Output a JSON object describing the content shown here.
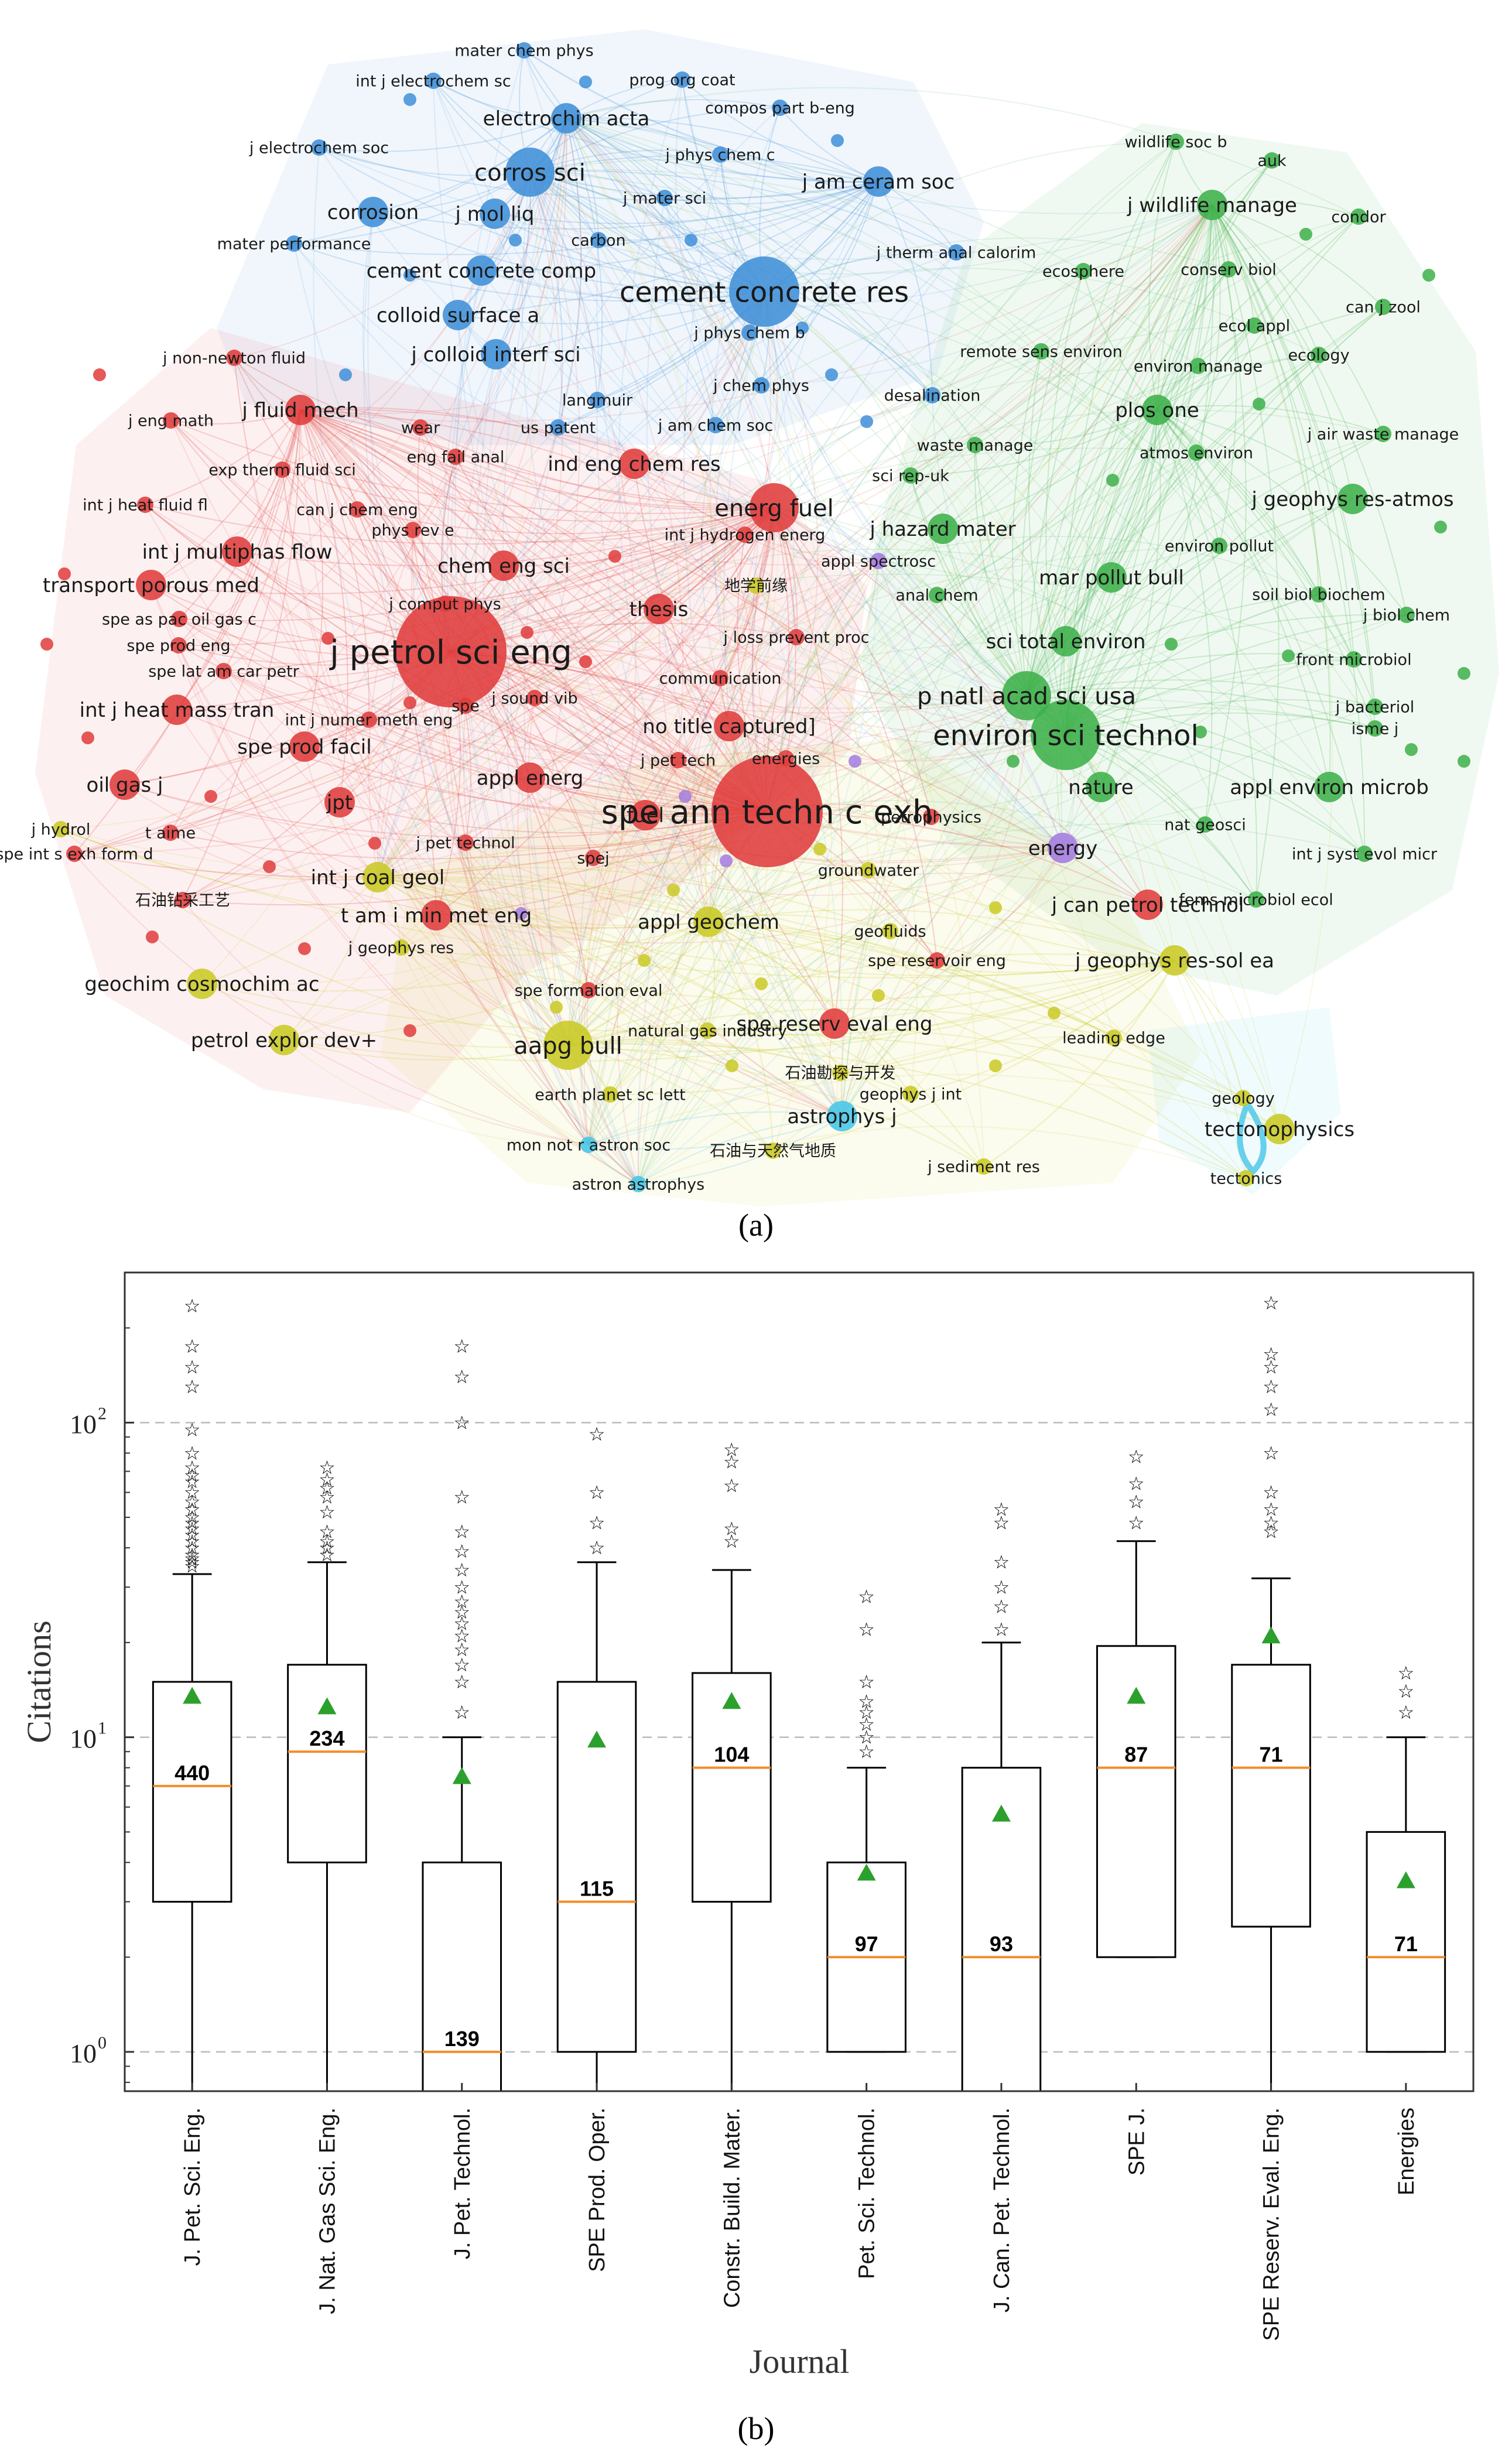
{
  "chart_data": [
    {
      "type": "network",
      "panel_label": "(a)",
      "clusters": [
        {
          "name": "blue",
          "color": "#3f8fd8"
        },
        {
          "name": "red",
          "color": "#e03c3c"
        },
        {
          "name": "green",
          "color": "#3db04a"
        },
        {
          "name": "yellow",
          "color": "#c9c924"
        },
        {
          "name": "purple",
          "color": "#a37be0"
        },
        {
          "name": "cyan",
          "color": "#45c6e8"
        }
      ],
      "nodes": [
        {
          "label": "mater chem phys",
          "cluster": "blue",
          "weight": 1
        },
        {
          "label": "int j electrochem sc",
          "cluster": "blue",
          "weight": 1
        },
        {
          "label": "prog org coat",
          "cluster": "blue",
          "weight": 1
        },
        {
          "label": "compos part b-eng",
          "cluster": "blue",
          "weight": 1
        },
        {
          "label": "electrochim acta",
          "cluster": "blue",
          "weight": 2
        },
        {
          "label": "j electrochem soc",
          "cluster": "blue",
          "weight": 1
        },
        {
          "label": "j phys chem c",
          "cluster": "blue",
          "weight": 1
        },
        {
          "label": "corros sci",
          "cluster": "blue",
          "weight": 3
        },
        {
          "label": "j am ceram soc",
          "cluster": "blue",
          "weight": 2
        },
        {
          "label": "corrosion",
          "cluster": "blue",
          "weight": 2
        },
        {
          "label": "j mol liq",
          "cluster": "blue",
          "weight": 2
        },
        {
          "label": "j mater sci",
          "cluster": "blue",
          "weight": 1
        },
        {
          "label": "mater performance",
          "cluster": "blue",
          "weight": 1
        },
        {
          "label": "carbon",
          "cluster": "blue",
          "weight": 1
        },
        {
          "label": "j therm anal calorim",
          "cluster": "blue",
          "weight": 1
        },
        {
          "label": "cement concrete comp",
          "cluster": "blue",
          "weight": 2
        },
        {
          "label": "cement concrete res",
          "cluster": "blue",
          "weight": 4
        },
        {
          "label": "colloid surface a",
          "cluster": "blue",
          "weight": 2
        },
        {
          "label": "j phys chem b",
          "cluster": "blue",
          "weight": 1
        },
        {
          "label": "j colloid interf sci",
          "cluster": "blue",
          "weight": 2
        },
        {
          "label": "j chem phys",
          "cluster": "blue",
          "weight": 1
        },
        {
          "label": "langmuir",
          "cluster": "blue",
          "weight": 1
        },
        {
          "label": "desalination",
          "cluster": "blue",
          "weight": 1
        },
        {
          "label": "j am chem soc",
          "cluster": "blue",
          "weight": 1
        },
        {
          "label": "us patent",
          "cluster": "blue",
          "weight": 1
        },
        {
          "label": "wildlife soc b",
          "cluster": "green",
          "weight": 1
        },
        {
          "label": "auk",
          "cluster": "green",
          "weight": 1
        },
        {
          "label": "j wildlife manage",
          "cluster": "green",
          "weight": 2
        },
        {
          "label": "condor",
          "cluster": "green",
          "weight": 1
        },
        {
          "label": "ecosphere",
          "cluster": "green",
          "weight": 1
        },
        {
          "label": "conserv biol",
          "cluster": "green",
          "weight": 1
        },
        {
          "label": "can j zool",
          "cluster": "green",
          "weight": 1
        },
        {
          "label": "ecol appl",
          "cluster": "green",
          "weight": 1
        },
        {
          "label": "remote sens environ",
          "cluster": "green",
          "weight": 1
        },
        {
          "label": "environ manage",
          "cluster": "green",
          "weight": 1
        },
        {
          "label": "ecology",
          "cluster": "green",
          "weight": 1
        },
        {
          "label": "plos one",
          "cluster": "green",
          "weight": 2
        },
        {
          "label": "j air waste manage",
          "cluster": "green",
          "weight": 1
        },
        {
          "label": "waste manage",
          "cluster": "green",
          "weight": 1
        },
        {
          "label": "atmos environ",
          "cluster": "green",
          "weight": 1
        },
        {
          "label": "sci rep-uk",
          "cluster": "green",
          "weight": 1
        },
        {
          "label": "j geophys res-atmos",
          "cluster": "green",
          "weight": 2
        },
        {
          "label": "j hazard mater",
          "cluster": "green",
          "weight": 2
        },
        {
          "label": "environ pollut",
          "cluster": "green",
          "weight": 1
        },
        {
          "label": "mar pollut bull",
          "cluster": "green",
          "weight": 2
        },
        {
          "label": "soil biol biochem",
          "cluster": "green",
          "weight": 1
        },
        {
          "label": "j biol chem",
          "cluster": "green",
          "weight": 1
        },
        {
          "label": "anal chem",
          "cluster": "green",
          "weight": 1
        },
        {
          "label": "sci total environ",
          "cluster": "green",
          "weight": 2
        },
        {
          "label": "front microbiol",
          "cluster": "green",
          "weight": 1
        },
        {
          "label": "p natl acad sci usa",
          "cluster": "green",
          "weight": 3
        },
        {
          "label": "j bacteriol",
          "cluster": "green",
          "weight": 1
        },
        {
          "label": "environ sci technol",
          "cluster": "green",
          "weight": 4
        },
        {
          "label": "isme j",
          "cluster": "green",
          "weight": 1
        },
        {
          "label": "nature",
          "cluster": "green",
          "weight": 2
        },
        {
          "label": "appl environ microb",
          "cluster": "green",
          "weight": 2
        },
        {
          "label": "nat geosci",
          "cluster": "green",
          "weight": 1
        },
        {
          "label": "int j syst evol micr",
          "cluster": "green",
          "weight": 1
        },
        {
          "label": "fems microbiol ecol",
          "cluster": "green",
          "weight": 1
        },
        {
          "label": "j non-newton fluid",
          "cluster": "red",
          "weight": 1
        },
        {
          "label": "j fluid mech",
          "cluster": "red",
          "weight": 2
        },
        {
          "label": "j eng math",
          "cluster": "red",
          "weight": 1
        },
        {
          "label": "wear",
          "cluster": "red",
          "weight": 1
        },
        {
          "label": "eng fail anal",
          "cluster": "red",
          "weight": 1
        },
        {
          "label": "exp therm fluid sci",
          "cluster": "red",
          "weight": 1
        },
        {
          "label": "ind eng chem res",
          "cluster": "red",
          "weight": 2
        },
        {
          "label": "int j heat fluid fl",
          "cluster": "red",
          "weight": 1
        },
        {
          "label": "can j chem eng",
          "cluster": "red",
          "weight": 1
        },
        {
          "label": "energ fuel",
          "cluster": "red",
          "weight": 3
        },
        {
          "label": "phys rev e",
          "cluster": "red",
          "weight": 1
        },
        {
          "label": "int j hydrogen energ",
          "cluster": "red",
          "weight": 1
        },
        {
          "label": "int j multiphas flow",
          "cluster": "red",
          "weight": 2
        },
        {
          "label": "appl spectrosc",
          "cluster": "purple",
          "weight": 1
        },
        {
          "label": "chem eng sci",
          "cluster": "red",
          "weight": 2
        },
        {
          "label": "transport porous med",
          "cluster": "red",
          "weight": 2
        },
        {
          "label": "j comput phys",
          "cluster": "red",
          "weight": 1
        },
        {
          "label": "thesis",
          "cluster": "red",
          "weight": 2
        },
        {
          "label": "spe as pac oil gas c",
          "cluster": "red",
          "weight": 1
        },
        {
          "label": "j loss prevent proc",
          "cluster": "red",
          "weight": 1
        },
        {
          "label": "spe prod eng",
          "cluster": "red",
          "weight": 1
        },
        {
          "label": "j petrol sci eng",
          "cluster": "red",
          "weight": 5
        },
        {
          "label": "spe lat am car petr",
          "cluster": "red",
          "weight": 1
        },
        {
          "label": "communication",
          "cluster": "red",
          "weight": 1
        },
        {
          "label": "int j heat mass tran",
          "cluster": "red",
          "weight": 2
        },
        {
          "label": "j sound vib",
          "cluster": "red",
          "weight": 1
        },
        {
          "label": "spe",
          "cluster": "red",
          "weight": 1
        },
        {
          "label": "int j numer meth eng",
          "cluster": "red",
          "weight": 1
        },
        {
          "label": "no title captured]",
          "cluster": "red",
          "weight": 2
        },
        {
          "label": "spe prod facil",
          "cluster": "red",
          "weight": 2
        },
        {
          "label": "j pet tech",
          "cluster": "red",
          "weight": 1
        },
        {
          "label": "energies",
          "cluster": "red",
          "weight": 1
        },
        {
          "label": "appl energ",
          "cluster": "red",
          "weight": 2
        },
        {
          "label": "oil gas j",
          "cluster": "red",
          "weight": 2
        },
        {
          "label": "jpt",
          "cluster": "red",
          "weight": 2
        },
        {
          "label": "spe ann techn c exh",
          "cluster": "red",
          "weight": 5
        },
        {
          "label": "fuel",
          "cluster": "red",
          "weight": 2
        },
        {
          "label": "petrophysics",
          "cluster": "red",
          "weight": 1
        },
        {
          "label": "j hydrol",
          "cluster": "yellow",
          "weight": 1
        },
        {
          "label": "t aime",
          "cluster": "red",
          "weight": 1
        },
        {
          "label": "j pet technol",
          "cluster": "red",
          "weight": 1
        },
        {
          "label": "spe int s exh form d",
          "cluster": "red",
          "weight": 1
        },
        {
          "label": "spej",
          "cluster": "red",
          "weight": 1
        },
        {
          "label": "energy",
          "cluster": "purple",
          "weight": 2
        },
        {
          "label": "groundwater",
          "cluster": "yellow",
          "weight": 1
        },
        {
          "label": "int j coal geol",
          "cluster": "yellow",
          "weight": 2
        },
        {
          "label": "石油钻采工艺",
          "cluster": "red",
          "weight": 1
        },
        {
          "label": "t am i min met eng",
          "cluster": "red",
          "weight": 2
        },
        {
          "label": "j can petrol technol",
          "cluster": "red",
          "weight": 2
        },
        {
          "label": "appl geochem",
          "cluster": "yellow",
          "weight": 2
        },
        {
          "label": "geofluids",
          "cluster": "yellow",
          "weight": 1
        },
        {
          "label": "j geophys res",
          "cluster": "yellow",
          "weight": 1
        },
        {
          "label": "spe reservoir eng",
          "cluster": "red",
          "weight": 1
        },
        {
          "label": "j geophys res-sol ea",
          "cluster": "yellow",
          "weight": 2
        },
        {
          "label": "geochim cosmochim ac",
          "cluster": "yellow",
          "weight": 2
        },
        {
          "label": "spe formation eval",
          "cluster": "red",
          "weight": 1
        },
        {
          "label": "petrol explor dev+",
          "cluster": "yellow",
          "weight": 2
        },
        {
          "label": "spe reserv eval eng",
          "cluster": "red",
          "weight": 2
        },
        {
          "label": "aapg bull",
          "cluster": "yellow",
          "weight": 3
        },
        {
          "label": "natural gas industry",
          "cluster": "yellow",
          "weight": 1
        },
        {
          "label": "leading edge",
          "cluster": "yellow",
          "weight": 1
        },
        {
          "label": "earth planet sc lett",
          "cluster": "yellow",
          "weight": 1
        },
        {
          "label": "石油勘探与开发",
          "cluster": "yellow",
          "weight": 1
        },
        {
          "label": "geophys j int",
          "cluster": "yellow",
          "weight": 1
        },
        {
          "label": "geology",
          "cluster": "yellow",
          "weight": 1
        },
        {
          "label": "astrophys j",
          "cluster": "cyan",
          "weight": 2
        },
        {
          "label": "tectonophysics",
          "cluster": "yellow",
          "weight": 2
        },
        {
          "label": "mon not r astron soc",
          "cluster": "cyan",
          "weight": 1
        },
        {
          "label": "石油与天然气地质",
          "cluster": "yellow",
          "weight": 1
        },
        {
          "label": "j sediment res",
          "cluster": "yellow",
          "weight": 1
        },
        {
          "label": "tectonics",
          "cluster": "yellow",
          "weight": 1
        },
        {
          "label": "astron astrophys",
          "cluster": "cyan",
          "weight": 1
        },
        {
          "label": "地学前缘",
          "cluster": "yellow",
          "weight": 1
        }
      ]
    },
    {
      "type": "boxplot",
      "panel_label": "(b)",
      "xlabel": "Journal",
      "ylabel": "Citations",
      "yscale": "log",
      "ylim": [
        0.75,
        300
      ],
      "yticks": [
        {
          "value": 1,
          "label": "10",
          "exp": "0"
        },
        {
          "value": 10,
          "label": "10",
          "exp": "1"
        },
        {
          "value": 100,
          "label": "10",
          "exp": "2"
        }
      ],
      "grid": "horizontal-dashed",
      "median_color": "#f28e2b",
      "mean_color": "#2ca02c",
      "categories": [
        "J. Pet. Sci. Eng.",
        "J. Nat. Gas Sci. Eng.",
        "J. Pet. Technol.",
        "SPE Prod. Oper.",
        "Constr. Build. Mater.",
        "Pet. Sci. Technol.",
        "J. Can. Pet. Technol.",
        "SPE J.",
        "SPE Reserv. Eval. Eng.",
        "Energies"
      ],
      "boxes": [
        {
          "count": "440",
          "whislo": 0.75,
          "q1": 3,
          "median": 7,
          "q3": 15,
          "whishi": 33,
          "mean": 13.5,
          "fliers": [
            35,
            36,
            37,
            38,
            40,
            42,
            44,
            46,
            48,
            50,
            53,
            56,
            60,
            65,
            68,
            72,
            80,
            95,
            130,
            150,
            175,
            235
          ]
        },
        {
          "count": "234",
          "whislo": 0.75,
          "q1": 4,
          "median": 9,
          "q3": 17,
          "whishi": 36,
          "mean": 12.5,
          "fliers": [
            38,
            40,
            42,
            45,
            52,
            58,
            62,
            66,
            72
          ]
        },
        {
          "count": "139",
          "whislo": 0.75,
          "q1": 0.75,
          "median": 1,
          "q3": 4,
          "whishi": 10,
          "mean": 7.5,
          "fliers": [
            12,
            15,
            17,
            19,
            21,
            23,
            25,
            27,
            30,
            34,
            39,
            45,
            58,
            100,
            140,
            175
          ]
        },
        {
          "count": "115",
          "whislo": 0.75,
          "q1": 1,
          "median": 3,
          "q3": 15,
          "whishi": 36,
          "mean": 9.8,
          "fliers": [
            40,
            48,
            60,
            92
          ]
        },
        {
          "count": "104",
          "whislo": 0.75,
          "q1": 3,
          "median": 8,
          "q3": 16,
          "whishi": 34,
          "mean": 13,
          "fliers": [
            42,
            46,
            63,
            75,
            82
          ]
        },
        {
          "count": "97",
          "whislo": 1,
          "q1": 1,
          "median": 2,
          "q3": 4,
          "whishi": 8,
          "mean": 3.7,
          "fliers": [
            9,
            10,
            11,
            12,
            13,
            15,
            22,
            28
          ]
        },
        {
          "count": "93",
          "whislo": 0.75,
          "q1": 0.75,
          "median": 2,
          "q3": 8,
          "whishi": 20,
          "mean": 5.7,
          "fliers": [
            22,
            26,
            30,
            36,
            48,
            53
          ]
        },
        {
          "count": "87",
          "whislo": 2,
          "q1": 2,
          "median": 8,
          "q3": 19.5,
          "whishi": 42,
          "mean": 13.5,
          "fliers": [
            48,
            56,
            64,
            78
          ]
        },
        {
          "count": "71",
          "whislo": 0.75,
          "q1": 2.5,
          "median": 8,
          "q3": 17,
          "whishi": 32,
          "mean": 21,
          "fliers": [
            45,
            48,
            53,
            60,
            80,
            110,
            130,
            150,
            165,
            240
          ]
        },
        {
          "count": "71",
          "whislo": 1,
          "q1": 1,
          "median": 2,
          "q3": 5,
          "whishi": 10,
          "mean": 3.5,
          "fliers": [
            12,
            14,
            16
          ]
        }
      ]
    }
  ]
}
